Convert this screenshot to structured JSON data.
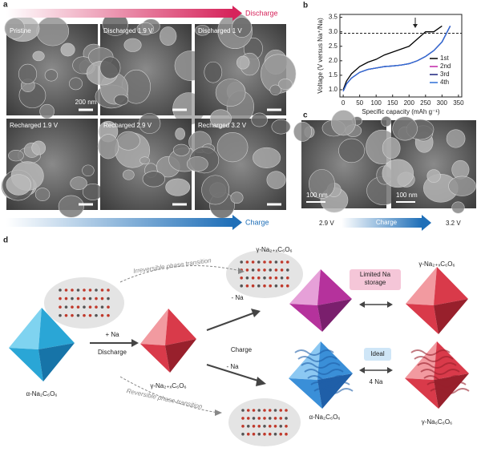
{
  "panel_a": {
    "label": "a",
    "discharge_arrow": "Discharge",
    "charge_arrow": "Charge",
    "images": [
      {
        "caption": "Pristine",
        "scale_bar": "200 nm"
      },
      {
        "caption": "Discharged 1.9 V"
      },
      {
        "caption": "Discharged 1 V"
      },
      {
        "caption": "Recharged 1.9 V"
      },
      {
        "caption": "Recharged 2.9 V"
      },
      {
        "caption": "Recharged 3.2 V"
      }
    ]
  },
  "chart_data": {
    "type": "line",
    "panel_label": "b",
    "x_label": "Specific capacity (mAh g⁻¹)",
    "y_label": "Voltage (V versus Na⁺/Na)",
    "x": [
      0,
      10,
      25,
      50,
      75,
      100,
      125,
      150,
      175,
      200,
      225,
      250,
      275,
      300,
      325
    ],
    "series": [
      {
        "name": "1st",
        "color": "#000000",
        "values": [
          1.0,
          1.3,
          1.55,
          1.8,
          1.95,
          2.05,
          2.2,
          2.3,
          2.4,
          2.5,
          2.75,
          3.0,
          3.0,
          3.2,
          null
        ]
      },
      {
        "name": "2nd",
        "color": "#c026a8",
        "values": [
          0.95,
          1.2,
          1.4,
          1.6,
          1.7,
          1.75,
          1.8,
          1.82,
          1.85,
          1.9,
          2.0,
          2.15,
          2.35,
          2.65,
          3.2
        ]
      },
      {
        "name": "3rd",
        "color": "#1a237e",
        "values": [
          0.95,
          1.2,
          1.4,
          1.6,
          1.7,
          1.75,
          1.8,
          1.82,
          1.85,
          1.9,
          2.0,
          2.15,
          2.35,
          2.65,
          3.2
        ]
      },
      {
        "name": "4th",
        "color": "#2f6fd6",
        "values": [
          0.95,
          1.2,
          1.4,
          1.6,
          1.7,
          1.75,
          1.8,
          1.82,
          1.85,
          1.9,
          2.0,
          2.15,
          2.35,
          2.65,
          3.2
        ]
      }
    ],
    "xlim": [
      -10,
      360
    ],
    "xticks": [
      0,
      50,
      100,
      150,
      200,
      250,
      300,
      350
    ],
    "ylim": [
      0.75,
      3.6
    ],
    "yticks": [
      {
        "value": 1,
        "label": "1.0"
      },
      1.5,
      {
        "value": 2,
        "label": "2.0"
      },
      2.5,
      {
        "value": 3,
        "label": "3.0"
      },
      3.5
    ],
    "reference_line": 2.95,
    "legend_position": "lower right"
  },
  "panel_c": {
    "label": "c",
    "scale_bars": [
      "100 nm",
      "100 nm"
    ],
    "start_voltage": "2.9 V",
    "arrow": "Charge",
    "end_voltage": "3.2 V"
  },
  "panel_d": {
    "label": "d",
    "top_transition": "Irreversible phase transition",
    "bottom_transition": "Reversible phase transition",
    "start_crystal": "α-Na₂C₆O₆",
    "discharge_step": "+ Na",
    "discharge": "Discharge",
    "mid_crystal": "γ-Na₂₊ₓC₆O₆",
    "charge": "Charge",
    "top_step": "- Na",
    "bottom_step": "- Na",
    "top_product": "γ-Na₂₊ₓC₆O₆",
    "limited": "Limited Na storage",
    "top_right": "γ-Na₂₊ₓC₆O₆",
    "bottom_product": "α-Na₂C₆O₆",
    "ideal": "Ideal",
    "ideal_step": "4 Na",
    "bottom_right": "γ-Na₆C₆O₆"
  }
}
